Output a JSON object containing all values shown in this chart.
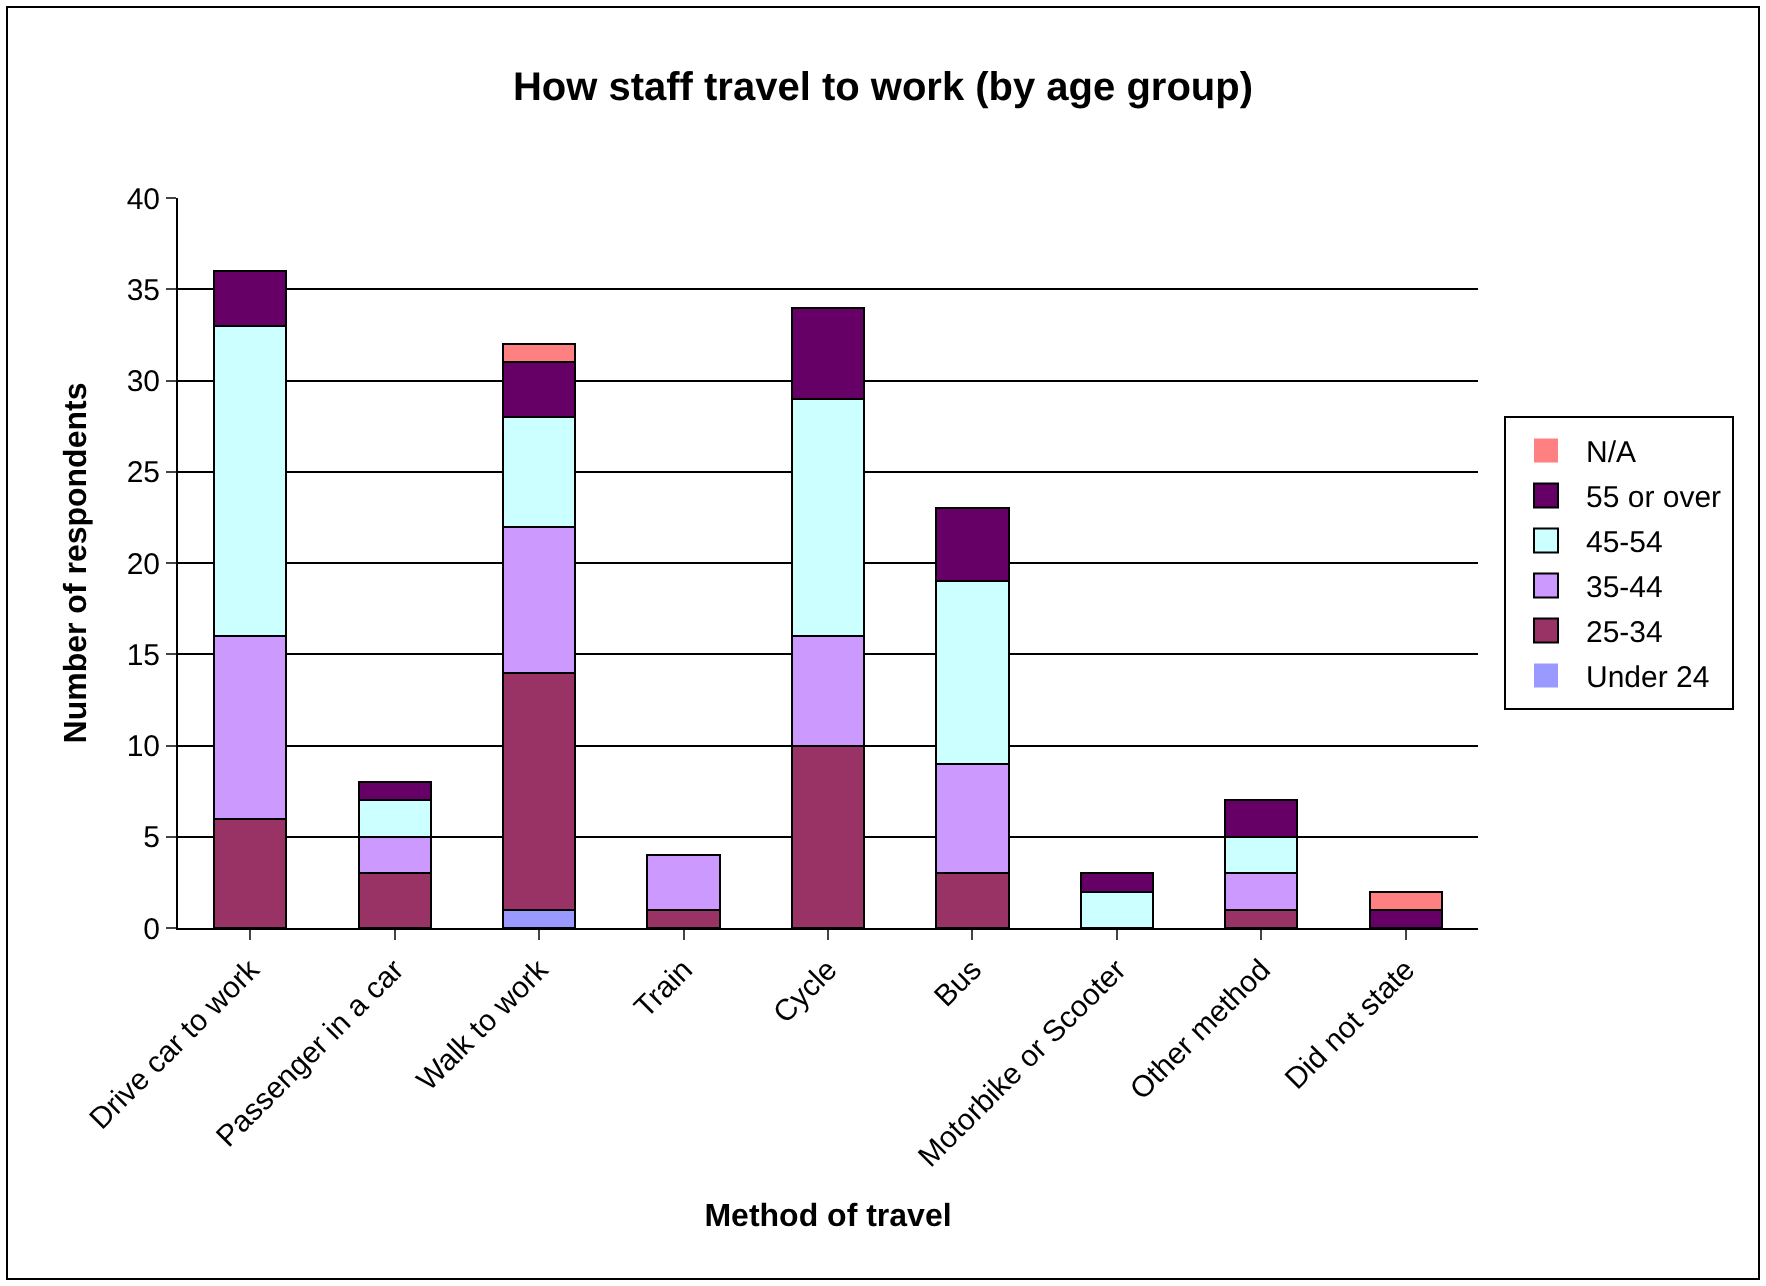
{
  "chart_data": {
    "type": "bar",
    "title": "How staff travel to work (by age group)",
    "xlabel": "Method of travel",
    "ylabel": "Number of respondents",
    "categories": [
      "Drive car to work",
      "Passenger in a car",
      "Walk to work",
      "Train",
      "Cycle",
      "Bus",
      "Motorbike or Scooter",
      "Other method",
      "Did not state"
    ],
    "stacked": true,
    "ylim": [
      0,
      40
    ],
    "yticks": [
      0,
      5,
      10,
      15,
      20,
      25,
      30,
      35,
      40
    ],
    "grid": "y",
    "legend": "right",
    "series": [
      {
        "name": "Under 24",
        "color": "#9999ff",
        "values": [
          0,
          0,
          1,
          0,
          0,
          0,
          0,
          0,
          0
        ]
      },
      {
        "name": "25-34",
        "color": "#993366",
        "values": [
          6,
          3,
          13,
          1,
          10,
          3,
          0,
          1,
          0
        ]
      },
      {
        "name": "35-44",
        "color": "#cc99ff",
        "values": [
          10,
          2,
          8,
          3,
          6,
          6,
          0,
          2,
          0
        ]
      },
      {
        "name": "45-54",
        "color": "#ccffff",
        "values": [
          17,
          2,
          6,
          0,
          13,
          10,
          2,
          2,
          0
        ]
      },
      {
        "name": "55 or over",
        "color": "#660066",
        "values": [
          3,
          1,
          3,
          0,
          5,
          4,
          1,
          2,
          1
        ]
      },
      {
        "name": "N/A",
        "color": "#ff8080",
        "values": [
          0,
          0,
          1,
          0,
          0,
          0,
          0,
          0,
          1
        ]
      }
    ]
  }
}
